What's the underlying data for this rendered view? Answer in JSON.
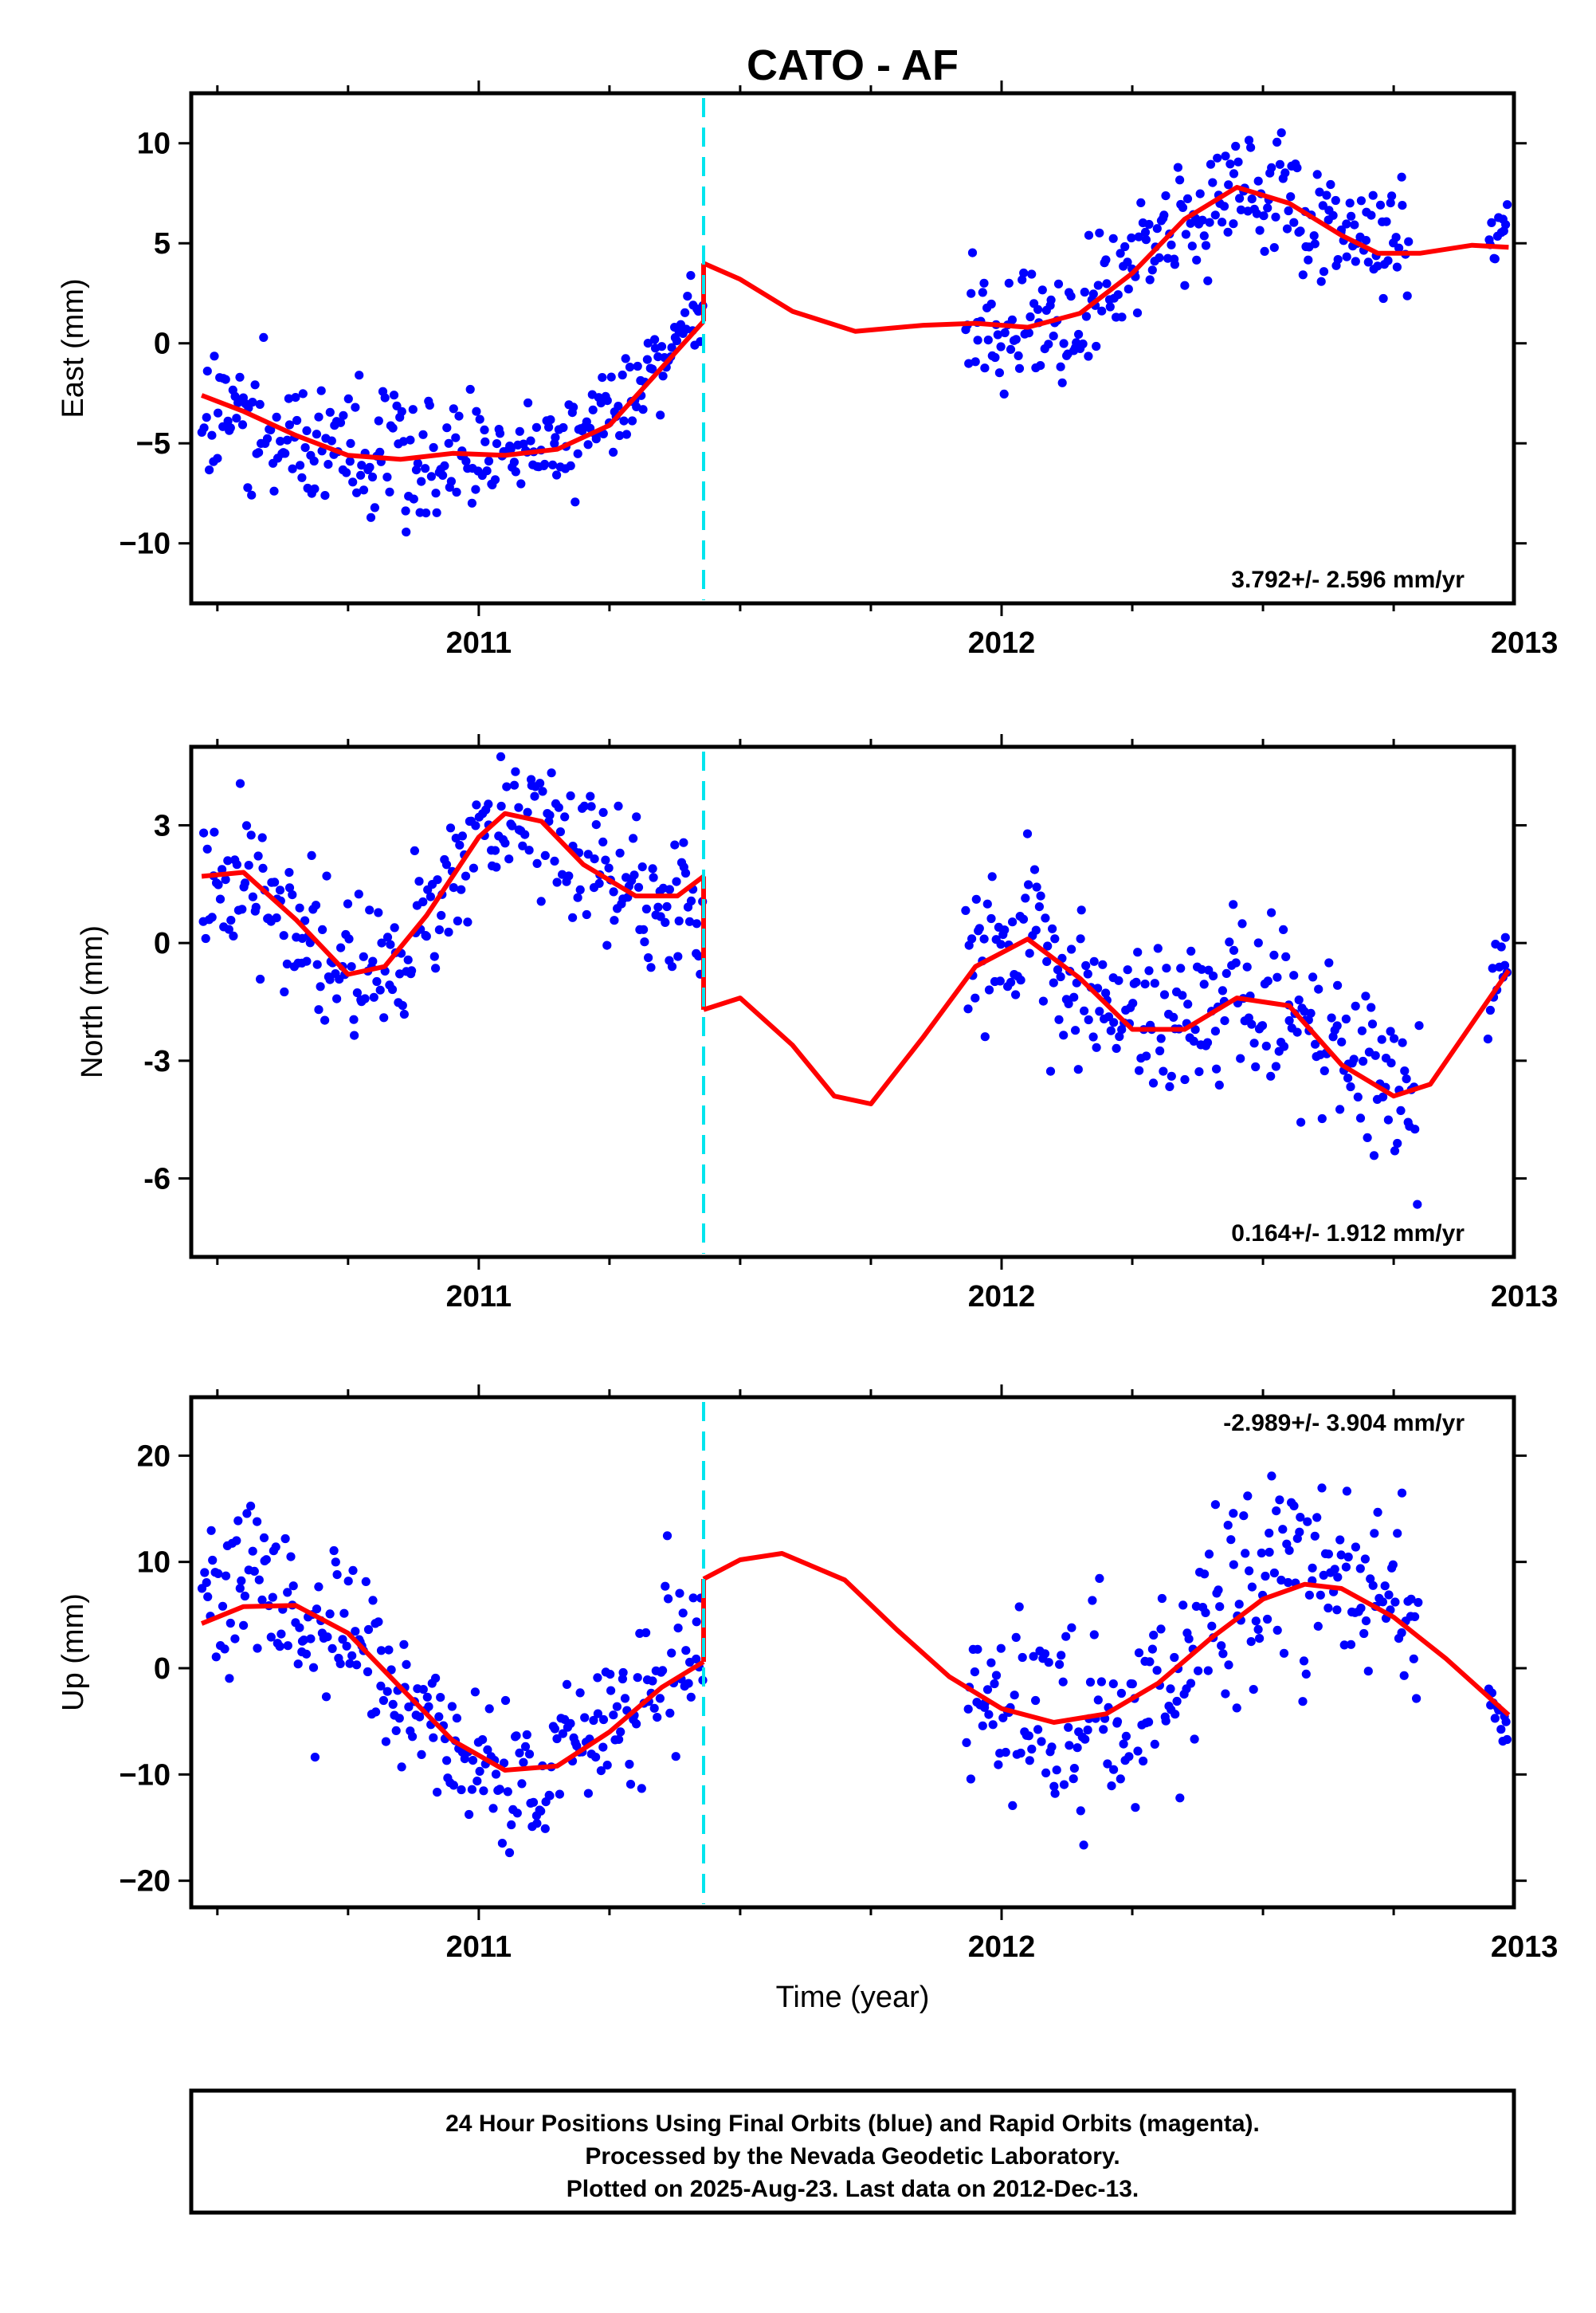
{
  "chart_data": {
    "type": "scatter",
    "title": "CATO - AF",
    "x_unit": "year",
    "xlim": [
      2010.45,
      2012.98
    ],
    "x_major_ticks": [
      2011,
      2012,
      2013
    ],
    "x_tick_labels": [
      "2011",
      "2012",
      "2013"
    ],
    "xlabel": "Time (year)",
    "marker_color": "#0000ff",
    "model_color": "#ff0000",
    "offset_color": "#00e5ee",
    "offset_epoch": 2011.43,
    "data_gaps": [
      [
        2011.43,
        2011.93
      ],
      [
        2012.78,
        2012.93
      ]
    ],
    "panels": [
      {
        "name": "East",
        "ylabel": "East (mm)",
        "ylim": [
          -13,
          12.5
        ],
        "yticks": [
          -10,
          -5,
          0,
          5,
          10
        ],
        "ytick_labels": [
          "−10",
          "−5",
          "0",
          "5",
          "10"
        ],
        "rate_text": "3.792+/- 2.596 mm/yr",
        "rate_position": "bottom-right",
        "model_series": [
          {
            "name": "",
            "points": [
              [
                2010.47,
                -2.6
              ],
              [
                2010.55,
                -3.4
              ],
              [
                2010.65,
                -4.6
              ],
              [
                2010.75,
                -5.6
              ],
              [
                2010.85,
                -5.8
              ],
              [
                2010.95,
                -5.5
              ],
              [
                2011.05,
                -5.6
              ],
              [
                2011.15,
                -5.3
              ],
              [
                2011.25,
                -4.1
              ],
              [
                2011.33,
                -1.8
              ],
              [
                2011.43,
                1.1
              ]
            ]
          },
          {
            "name": "",
            "points": [
              [
                2011.43,
                4.0
              ],
              [
                2011.5,
                3.2
              ],
              [
                2011.6,
                1.6
              ],
              [
                2011.72,
                0.6
              ],
              [
                2011.85,
                0.9
              ],
              [
                2011.95,
                1.0
              ],
              [
                2012.05,
                0.8
              ],
              [
                2012.15,
                1.5
              ],
              [
                2012.25,
                3.5
              ],
              [
                2012.35,
                6.2
              ],
              [
                2012.45,
                7.8
              ],
              [
                2012.55,
                7.0
              ],
              [
                2012.65,
                5.4
              ],
              [
                2012.72,
                4.5
              ],
              [
                2012.8,
                4.5
              ],
              [
                2012.9,
                4.9
              ],
              [
                2012.97,
                4.8
              ]
            ]
          }
        ],
        "scatter_segments": [
          {
            "x0": 2010.47,
            "x1": 2011.43,
            "trend_pts": [
              [
                2010.47,
                -3.0
              ],
              [
                2010.6,
                -4.2
              ],
              [
                2010.75,
                -5.5
              ],
              [
                2010.9,
                -5.7
              ],
              [
                2011.05,
                -5.5
              ],
              [
                2011.2,
                -4.6
              ],
              [
                2011.3,
                -2.5
              ],
              [
                2011.43,
                1.5
              ]
            ],
            "sigma": [
              1.8,
              1.0
            ]
          },
          {
            "x0": 2011.93,
            "x1": 2012.78,
            "trend_pts": [
              [
                2011.93,
                1.2
              ],
              [
                2012.05,
                0.6
              ],
              [
                2012.15,
                1.3
              ],
              [
                2012.25,
                3.6
              ],
              [
                2012.35,
                6.4
              ],
              [
                2012.45,
                8.0
              ],
              [
                2012.55,
                7.2
              ],
              [
                2012.65,
                5.6
              ],
              [
                2012.78,
                4.6
              ]
            ],
            "sigma": [
              1.6,
              1.4
            ]
          },
          {
            "x0": 2012.93,
            "x1": 2012.97,
            "trend_pts": [
              [
                2012.93,
                5.2
              ],
              [
                2012.97,
                5.8
              ]
            ],
            "sigma": [
              1.0,
              1.0
            ]
          }
        ]
      },
      {
        "name": "North",
        "ylabel": "North (mm)",
        "ylim": [
          -8,
          5
        ],
        "yticks": [
          -6,
          -3,
          0,
          3
        ],
        "ytick_labels": [
          "-6",
          "-3",
          "0",
          "3"
        ],
        "rate_text": "0.164+/- 1.912 mm/yr",
        "rate_position": "bottom-right",
        "model_series": [
          {
            "name": "",
            "points": [
              [
                2010.47,
                1.7
              ],
              [
                2010.55,
                1.8
              ],
              [
                2010.65,
                0.6
              ],
              [
                2010.75,
                -0.8
              ],
              [
                2010.82,
                -0.6
              ],
              [
                2010.9,
                0.7
              ],
              [
                2011.0,
                2.7
              ],
              [
                2011.05,
                3.3
              ],
              [
                2011.12,
                3.1
              ],
              [
                2011.2,
                2.0
              ],
              [
                2011.3,
                1.2
              ],
              [
                2011.38,
                1.2
              ],
              [
                2011.43,
                1.7
              ]
            ]
          },
          {
            "name": "",
            "points": [
              [
                2011.43,
                -1.7
              ],
              [
                2011.5,
                -1.4
              ],
              [
                2011.6,
                -2.6
              ],
              [
                2011.68,
                -3.9
              ],
              [
                2011.75,
                -4.1
              ],
              [
                2011.85,
                -2.4
              ],
              [
                2011.95,
                -0.6
              ],
              [
                2012.05,
                0.1
              ],
              [
                2012.15,
                -0.9
              ],
              [
                2012.25,
                -2.2
              ],
              [
                2012.35,
                -2.2
              ],
              [
                2012.45,
                -1.4
              ],
              [
                2012.55,
                -1.6
              ],
              [
                2012.65,
                -3.1
              ],
              [
                2012.75,
                -3.9
              ],
              [
                2012.82,
                -3.6
              ],
              [
                2012.97,
                -0.7
              ]
            ]
          }
        ],
        "scatter_segments": [
          {
            "x0": 2010.47,
            "x1": 2011.43,
            "trend_pts": [
              [
                2010.47,
                1.6
              ],
              [
                2010.55,
                1.5
              ],
              [
                2010.65,
                0.5
              ],
              [
                2010.75,
                -0.9
              ],
              [
                2010.82,
                -0.6
              ],
              [
                2010.9,
                0.8
              ],
              [
                2011.0,
                2.7
              ],
              [
                2011.05,
                3.2
              ],
              [
                2011.12,
                3.1
              ],
              [
                2011.2,
                2.1
              ],
              [
                2011.3,
                1.1
              ],
              [
                2011.43,
                1.2
              ]
            ],
            "sigma": [
              1.0,
              0.9
            ]
          },
          {
            "x0": 2011.93,
            "x1": 2012.8,
            "trend_pts": [
              [
                2011.93,
                -0.8
              ],
              [
                2012.05,
                0.2
              ],
              [
                2012.15,
                -0.9
              ],
              [
                2012.25,
                -2.3
              ],
              [
                2012.35,
                -2.2
              ],
              [
                2012.45,
                -1.3
              ],
              [
                2012.55,
                -1.6
              ],
              [
                2012.65,
                -3.1
              ],
              [
                2012.8,
                -4.0
              ]
            ],
            "sigma": [
              1.0,
              1.0
            ]
          },
          {
            "x0": 2012.93,
            "x1": 2012.97,
            "trend_pts": [
              [
                2012.93,
                -1.5
              ],
              [
                2012.97,
                0.0
              ]
            ],
            "sigma": [
              0.5,
              0.5
            ]
          }
        ]
      },
      {
        "name": "Up",
        "ylabel": "Up (mm)",
        "ylim": [
          -22.5,
          25.5
        ],
        "yticks": [
          -20,
          -10,
          0,
          10,
          20
        ],
        "ytick_labels": [
          "−20",
          "−10",
          "0",
          "10",
          "20"
        ],
        "rate_text": "-2.989+/- 3.904 mm/yr",
        "rate_position": "top-right",
        "model_series": [
          {
            "name": "",
            "points": [
              [
                2010.47,
                4.2
              ],
              [
                2010.55,
                5.8
              ],
              [
                2010.65,
                5.9
              ],
              [
                2010.75,
                3.3
              ],
              [
                2010.85,
                -1.8
              ],
              [
                2010.95,
                -6.8
              ],
              [
                2011.05,
                -9.6
              ],
              [
                2011.15,
                -9.2
              ],
              [
                2011.25,
                -6.0
              ],
              [
                2011.35,
                -1.8
              ],
              [
                2011.43,
                0.6
              ]
            ]
          },
          {
            "name": "",
            "points": [
              [
                2011.43,
                8.4
              ],
              [
                2011.5,
                10.2
              ],
              [
                2011.58,
                10.8
              ],
              [
                2011.7,
                8.3
              ],
              [
                2011.8,
                3.6
              ],
              [
                2011.9,
                -0.8
              ],
              [
                2012.0,
                -3.8
              ],
              [
                2012.1,
                -5.1
              ],
              [
                2012.2,
                -4.3
              ],
              [
                2012.3,
                -1.4
              ],
              [
                2012.4,
                2.8
              ],
              [
                2012.5,
                6.5
              ],
              [
                2012.58,
                7.9
              ],
              [
                2012.65,
                7.5
              ],
              [
                2012.75,
                4.8
              ],
              [
                2012.85,
                0.9
              ],
              [
                2012.97,
                -4.4
              ]
            ]
          }
        ],
        "scatter_segments": [
          {
            "x0": 2010.47,
            "x1": 2011.43,
            "trend_pts": [
              [
                2010.47,
                5.0
              ],
              [
                2010.55,
                8.5
              ],
              [
                2010.65,
                6.0
              ],
              [
                2010.75,
                3.0
              ],
              [
                2010.85,
                -2.0
              ],
              [
                2010.95,
                -7.0
              ],
              [
                2011.05,
                -10.5
              ],
              [
                2011.15,
                -10.0
              ],
              [
                2011.25,
                -6.0
              ],
              [
                2011.35,
                -1.5
              ],
              [
                2011.43,
                2.0
              ]
            ],
            "sigma": [
              3.8,
              3.5
            ]
          },
          {
            "x0": 2011.93,
            "x1": 2012.8,
            "trend_pts": [
              [
                2011.93,
                -1.0
              ],
              [
                2012.0,
                -3.5
              ],
              [
                2012.1,
                -5.5
              ],
              [
                2012.2,
                -4.5
              ],
              [
                2012.3,
                -1.5
              ],
              [
                2012.4,
                4.0
              ],
              [
                2012.5,
                9.0
              ],
              [
                2012.6,
                10.0
              ],
              [
                2012.7,
                8.0
              ],
              [
                2012.8,
                7.0
              ]
            ],
            "sigma": [
              4.5,
              4.5
            ]
          },
          {
            "x0": 2012.93,
            "x1": 2012.97,
            "trend_pts": [
              [
                2012.93,
                -3.0
              ],
              [
                2012.97,
                -5.5
              ]
            ],
            "sigma": [
              1.0,
              1.0
            ]
          }
        ]
      }
    ]
  },
  "footer": {
    "line1": "24 Hour Positions Using Final Orbits (blue) and Rapid Orbits (magenta).",
    "line2": "Processed by the Nevada Geodetic Laboratory.",
    "line3": "Plotted on 2025-Aug-23. Last data on 2012-Dec-13."
  }
}
